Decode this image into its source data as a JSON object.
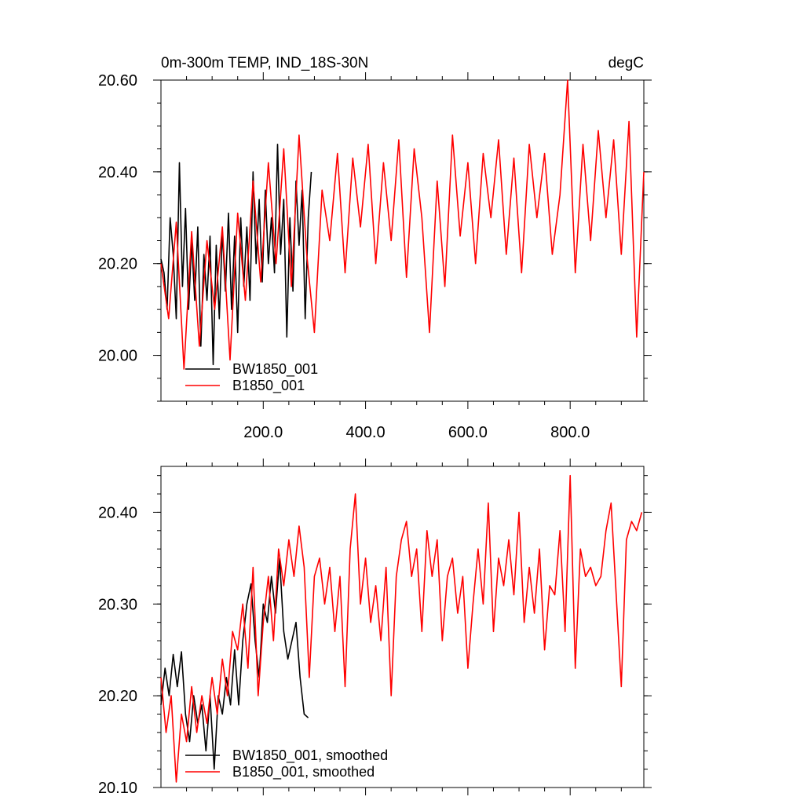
{
  "chart_data": [
    {
      "type": "line",
      "title": "0m-300m TEMP, IND_18S-30N",
      "units": "degC",
      "xlabel": "",
      "ylabel": "",
      "xlim": [
        0,
        944
      ],
      "ylim": [
        19.9,
        20.6
      ],
      "xticks": [
        200,
        400,
        600,
        800
      ],
      "xtick_labels": [
        "200.0",
        "400.0",
        "600.0",
        "800.0"
      ],
      "yticks": [
        20.0,
        20.2,
        20.4,
        20.6
      ],
      "ytick_labels": [
        "20.00",
        "20.20",
        "20.40",
        "20.60"
      ],
      "legend": [
        "BW1850_001",
        "B1850_001"
      ],
      "series": [
        {
          "name": "BW1850_001",
          "color": "#000000",
          "x": [
            0,
            6,
            12,
            18,
            24,
            30,
            36,
            42,
            48,
            54,
            60,
            66,
            72,
            78,
            84,
            90,
            96,
            102,
            108,
            114,
            120,
            126,
            132,
            138,
            144,
            150,
            156,
            162,
            168,
            174,
            180,
            186,
            192,
            198,
            204,
            210,
            216,
            222,
            228,
            234,
            240,
            246,
            252,
            258,
            264,
            270,
            276,
            282,
            288,
            294
          ],
          "values": [
            20.21,
            20.18,
            20.1,
            20.3,
            20.22,
            20.08,
            20.42,
            20.15,
            20.32,
            20.1,
            20.25,
            20.12,
            20.28,
            20.02,
            20.22,
            20.12,
            20.26,
            19.98,
            20.24,
            20.08,
            20.27,
            20.14,
            20.31,
            20.1,
            20.26,
            20.05,
            20.3,
            20.15,
            20.28,
            20.12,
            20.4,
            20.2,
            20.34,
            20.16,
            20.36,
            20.2,
            20.3,
            20.18,
            20.46,
            20.22,
            20.34,
            20.04,
            20.3,
            20.14,
            20.38,
            20.24,
            20.36,
            20.08,
            20.3,
            20.4
          ]
        },
        {
          "name": "B1850_001",
          "color": "#ff0000",
          "x": [
            0,
            15,
            30,
            45,
            60,
            75,
            90,
            105,
            120,
            135,
            150,
            165,
            180,
            195,
            210,
            225,
            240,
            255,
            270,
            285,
            300,
            315,
            330,
            345,
            360,
            375,
            390,
            405,
            420,
            435,
            450,
            465,
            480,
            495,
            510,
            525,
            540,
            555,
            570,
            585,
            600,
            615,
            630,
            645,
            660,
            675,
            690,
            705,
            720,
            735,
            750,
            765,
            780,
            795,
            810,
            825,
            840,
            855,
            870,
            885,
            900,
            915,
            930,
            944
          ],
          "values": [
            20.2,
            20.08,
            20.29,
            19.97,
            20.27,
            20.02,
            20.25,
            20.1,
            20.28,
            19.99,
            20.31,
            20.12,
            20.38,
            20.16,
            20.42,
            20.2,
            20.45,
            20.15,
            20.48,
            20.22,
            20.05,
            20.36,
            20.25,
            20.44,
            20.18,
            20.43,
            20.28,
            20.46,
            20.2,
            20.42,
            20.25,
            20.47,
            20.17,
            20.45,
            20.3,
            20.05,
            20.38,
            20.15,
            20.48,
            20.26,
            20.42,
            20.2,
            20.44,
            20.3,
            20.47,
            20.22,
            20.43,
            20.18,
            20.46,
            20.3,
            20.44,
            20.22,
            20.35,
            20.6,
            20.18,
            20.46,
            20.25,
            20.49,
            20.3,
            20.47,
            20.22,
            20.51,
            20.04,
            20.4
          ]
        }
      ]
    },
    {
      "type": "line",
      "title": "",
      "xlabel": "",
      "ylabel": "",
      "xlim": [
        0,
        944
      ],
      "ylim": [
        20.1,
        20.45
      ],
      "xticks": [
        200,
        400,
        600,
        800
      ],
      "yticks": [
        20.1,
        20.2,
        20.3,
        20.4
      ],
      "ytick_labels": [
        "20.10",
        "20.20",
        "20.30",
        "20.40"
      ],
      "legend": [
        "BW1850_001, smoothed",
        "B1850_001, smoothed"
      ],
      "series": [
        {
          "name": "BW1850_001, smoothed",
          "color": "#000000",
          "x": [
            0,
            8,
            16,
            24,
            32,
            40,
            48,
            56,
            64,
            72,
            80,
            88,
            96,
            104,
            112,
            120,
            128,
            136,
            144,
            152,
            160,
            168,
            176,
            184,
            192,
            200,
            208,
            216,
            224,
            232,
            240,
            248,
            256,
            264,
            272,
            280,
            288
          ],
          "values": [
            20.19,
            20.23,
            20.2,
            20.245,
            20.21,
            20.248,
            20.18,
            20.15,
            20.2,
            20.17,
            20.19,
            20.14,
            20.2,
            20.12,
            20.2,
            20.18,
            20.22,
            20.19,
            20.25,
            20.19,
            20.26,
            20.3,
            20.322,
            20.26,
            20.22,
            20.3,
            20.28,
            20.33,
            20.29,
            20.35,
            20.27,
            20.24,
            20.26,
            20.28,
            20.22,
            20.18,
            20.176
          ]
        },
        {
          "name": "B1850_001, smoothed",
          "color": "#ff0000",
          "x": [
            0,
            10,
            20,
            30,
            40,
            50,
            60,
            70,
            80,
            90,
            100,
            110,
            120,
            130,
            140,
            150,
            160,
            170,
            180,
            190,
            200,
            210,
            220,
            230,
            240,
            250,
            260,
            270,
            280,
            290,
            300,
            310,
            320,
            330,
            340,
            350,
            360,
            370,
            380,
            390,
            400,
            410,
            420,
            430,
            440,
            450,
            460,
            470,
            480,
            490,
            500,
            510,
            520,
            530,
            540,
            550,
            560,
            570,
            580,
            590,
            600,
            610,
            620,
            630,
            640,
            650,
            660,
            670,
            680,
            690,
            700,
            710,
            720,
            730,
            740,
            750,
            760,
            770,
            780,
            790,
            800,
            810,
            820,
            830,
            840,
            850,
            860,
            870,
            880,
            890,
            900,
            910,
            920,
            930,
            940
          ],
          "values": [
            20.22,
            20.16,
            20.2,
            20.106,
            20.18,
            20.15,
            20.21,
            20.16,
            20.2,
            20.17,
            20.22,
            20.18,
            20.24,
            20.2,
            20.27,
            20.25,
            20.3,
            20.23,
            20.34,
            20.2,
            20.28,
            20.33,
            20.26,
            20.36,
            20.32,
            20.37,
            20.33,
            20.385,
            20.34,
            20.22,
            20.33,
            20.35,
            20.3,
            20.34,
            20.27,
            20.33,
            20.21,
            20.36,
            20.42,
            20.3,
            20.35,
            20.28,
            20.32,
            20.26,
            20.34,
            20.2,
            20.33,
            20.37,
            20.39,
            20.33,
            20.36,
            20.27,
            20.38,
            20.33,
            20.37,
            20.26,
            20.33,
            20.35,
            20.29,
            20.33,
            20.23,
            20.3,
            20.36,
            20.3,
            20.41,
            20.27,
            20.35,
            20.32,
            20.37,
            20.31,
            20.4,
            20.28,
            20.34,
            20.29,
            20.36,
            20.25,
            20.32,
            20.31,
            20.38,
            20.27,
            20.44,
            20.23,
            20.36,
            20.33,
            20.34,
            20.32,
            20.33,
            20.38,
            20.41,
            20.31,
            20.21,
            20.37,
            20.39,
            20.38,
            20.4
          ]
        }
      ]
    }
  ]
}
